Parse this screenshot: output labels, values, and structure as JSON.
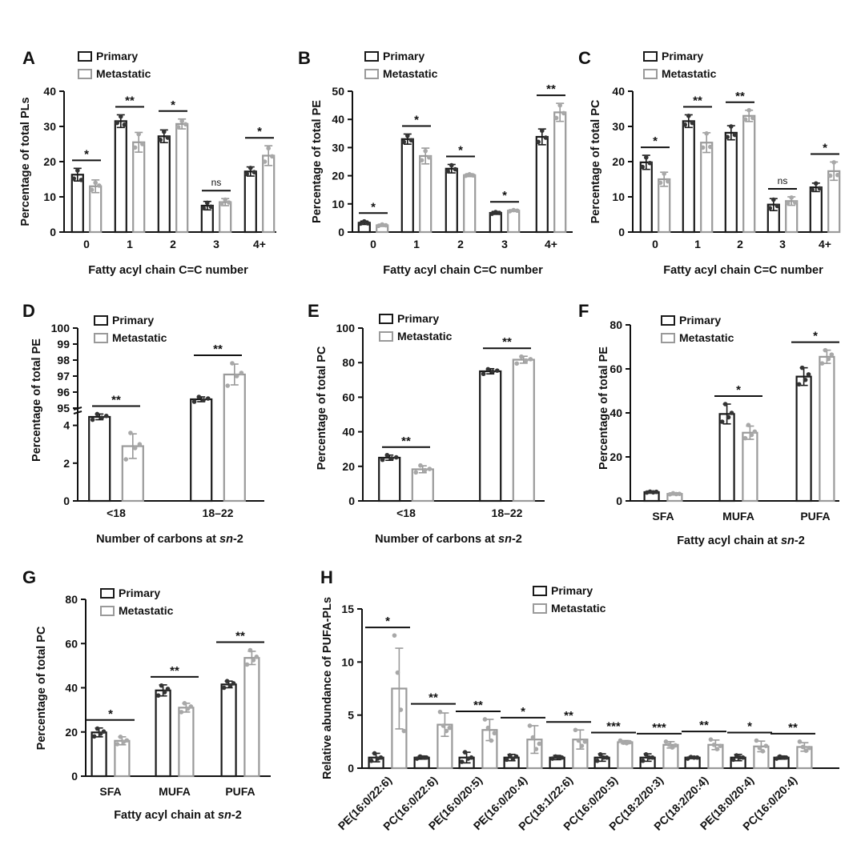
{
  "colors": {
    "primary": "#1a1a1a",
    "metastatic": "#9a9a9a",
    "dot_primary": "#333333",
    "dot_metastatic": "#a8a8a8"
  },
  "legend": {
    "primary": "Primary",
    "metastatic": "Metastatic"
  },
  "chart_data": [
    {
      "type": "bar",
      "letter": "A",
      "ylabel": "Percentage of total PLs",
      "xlabel_parts": [
        {
          "t": "Fatty acyl chain C=C number",
          "i": false
        }
      ],
      "yticks": [
        0,
        10,
        20,
        30,
        40
      ],
      "ylim": [
        0,
        40
      ],
      "categories": [
        "0",
        "1",
        "2",
        "3",
        "4+"
      ],
      "series": [
        {
          "name": "Primary",
          "values": [
            16.3,
            31.5,
            27.2,
            7.5,
            17.2
          ],
          "errors": [
            1.8,
            1.8,
            1.8,
            1.2,
            1.3
          ],
          "points": [
            [
              15.2,
              17.5,
              14.8
            ],
            [
              31.0,
              32.8,
              30.5
            ],
            [
              26.2,
              28.5,
              26.8
            ],
            [
              6.8,
              8.3,
              7.2
            ],
            [
              16.5,
              18.2,
              17.0
            ]
          ]
        },
        {
          "name": "Metastatic",
          "values": [
            13.0,
            25.5,
            30.7,
            8.5,
            21.7
          ],
          "errors": [
            1.8,
            2.8,
            1.4,
            1.0,
            2.8
          ],
          "points": [
            [
              12.0,
              14.0,
              13.2
            ],
            [
              24.0,
              27.8,
              25.0
            ],
            [
              29.8,
              31.5,
              30.6
            ],
            [
              8.0,
              9.2,
              8.4
            ],
            [
              20.0,
              23.8,
              21.5
            ]
          ]
        }
      ],
      "sig": [
        "*",
        "**",
        "*",
        "ns",
        "*"
      ]
    },
    {
      "type": "bar",
      "letter": "B",
      "ylabel": "Percentage of total PE",
      "xlabel_parts": [
        {
          "t": "Fatty acyl chain C=C number",
          "i": false
        }
      ],
      "yticks": [
        0,
        10,
        20,
        30,
        40,
        50
      ],
      "ylim": [
        0,
        50
      ],
      "categories": [
        "0",
        "1",
        "2",
        "3",
        "4+"
      ],
      "series": [
        {
          "name": "Primary",
          "values": [
            3.3,
            33.0,
            22.5,
            6.8,
            33.8
          ],
          "errors": [
            0.6,
            1.8,
            1.5,
            0.5,
            2.8
          ],
          "points": [
            [
              3.0,
              3.8,
              3.1
            ],
            [
              32.0,
              34.2,
              32.6
            ],
            [
              21.6,
              23.7,
              22.3
            ],
            [
              6.5,
              7.1,
              6.8
            ],
            [
              32.0,
              36.0,
              33.5
            ]
          ]
        },
        {
          "name": "Metastatic",
          "values": [
            2.4,
            27.0,
            20.2,
            7.6,
            42.5
          ],
          "errors": [
            0.4,
            2.8,
            0.5,
            0.3,
            3.2
          ],
          "points": [
            [
              2.2,
              2.7,
              2.4
            ],
            [
              25.5,
              28.8,
              26.5
            ],
            [
              20.0,
              20.5,
              20.1
            ],
            [
              7.4,
              7.8,
              7.6
            ],
            [
              40.5,
              45.0,
              42.2
            ]
          ]
        }
      ],
      "sig": [
        "*",
        "*",
        "*",
        "*",
        "**"
      ]
    },
    {
      "type": "bar",
      "letter": "C",
      "ylabel": "Percentage of total PC",
      "xlabel_parts": [
        {
          "t": "Fatty acyl chain C=C number",
          "i": false
        }
      ],
      "yticks": [
        0,
        10,
        20,
        30,
        40
      ],
      "ylim": [
        0,
        40
      ],
      "categories": [
        "0",
        "1",
        "2",
        "3",
        "4+"
      ],
      "series": [
        {
          "name": "Primary",
          "values": [
            19.8,
            31.5,
            28.2,
            7.8,
            12.7
          ],
          "errors": [
            2.0,
            1.8,
            2.0,
            1.7,
            1.2
          ],
          "points": [
            [
              18.5,
              21.2,
              19.6
            ],
            [
              30.5,
              33.0,
              31.0
            ],
            [
              27.0,
              30.0,
              27.6
            ],
            [
              6.8,
              9.2,
              7.4
            ],
            [
              12.0,
              13.8,
              12.4
            ]
          ]
        },
        {
          "name": "Metastatic",
          "values": [
            15.0,
            25.4,
            33.0,
            8.8,
            17.3
          ],
          "errors": [
            2.0,
            2.8,
            1.6,
            1.2,
            2.6
          ],
          "points": [
            [
              14.0,
              16.6,
              14.4
            ],
            [
              24.0,
              28.0,
              24.2
            ],
            [
              32.0,
              34.6,
              32.4
            ],
            [
              8.2,
              9.8,
              8.4
            ],
            [
              16.0,
              19.8,
              16.2
            ]
          ]
        }
      ],
      "sig": [
        "*",
        "**",
        "**",
        "ns",
        "*"
      ]
    },
    {
      "type": "bar",
      "letter": "D",
      "ylabel": "Percentage of total PE",
      "xlabel_parts": [
        {
          "t": "Number of carbons at ",
          "i": false
        },
        {
          "t": "sn",
          "i": true
        },
        {
          "t": "-2",
          "i": false
        }
      ],
      "yticks": [
        0,
        2,
        4,
        95,
        96,
        97,
        98,
        99,
        100
      ],
      "ylim": [
        0,
        100
      ],
      "axis_break": [
        5,
        95
      ],
      "categories": [
        "<18",
        "18–22"
      ],
      "series": [
        {
          "name": "Primary",
          "values": [
            4.45,
            95.55
          ],
          "errors": [
            0.15,
            0.15
          ],
          "points": [
            [
              4.3,
              4.6,
              4.4,
              4.5
            ],
            [
              95.4,
              95.7,
              95.5,
              95.6
            ]
          ]
        },
        {
          "name": "Metastatic",
          "values": [
            2.9,
            97.1
          ],
          "errors": [
            0.65,
            0.65
          ],
          "points": [
            [
              2.2,
              3.6,
              2.8,
              3.0
            ],
            [
              96.4,
              97.8,
              97.0,
              97.2
            ]
          ]
        }
      ],
      "sig": [
        "**",
        "**"
      ]
    },
    {
      "type": "bar",
      "letter": "E",
      "ylabel": "Percentage of total PC",
      "xlabel_parts": [
        {
          "t": "Number of carbons at ",
          "i": false
        },
        {
          "t": "sn",
          "i": true
        },
        {
          "t": "-2",
          "i": false
        }
      ],
      "yticks": [
        0,
        20,
        40,
        60,
        80,
        100
      ],
      "ylim": [
        0,
        100
      ],
      "categories": [
        "<18",
        "18–22"
      ],
      "series": [
        {
          "name": "Primary",
          "values": [
            25.0,
            75.0
          ],
          "errors": [
            1.5,
            1.5
          ],
          "points": [
            [
              23.8,
              26.5,
              24.6,
              25.2
            ],
            [
              73.5,
              76.2,
              74.8,
              75.4
            ]
          ]
        },
        {
          "name": "Metastatic",
          "values": [
            18.3,
            81.7
          ],
          "errors": [
            2.0,
            2.0
          ],
          "points": [
            [
              16.5,
              20.5,
              17.8,
              18.5
            ],
            [
              79.5,
              83.5,
              81.2,
              82.0
            ]
          ]
        }
      ],
      "sig": [
        "**",
        "**"
      ]
    },
    {
      "type": "bar",
      "letter": "F",
      "ylabel": "Percentage of total PE",
      "xlabel_parts": [
        {
          "t": "Fatty acyl chain at ",
          "i": false
        },
        {
          "t": "sn",
          "i": true
        },
        {
          "t": "-2",
          "i": false
        }
      ],
      "yticks": [
        0,
        20,
        40,
        60,
        80
      ],
      "ylim": [
        0,
        80
      ],
      "categories": [
        "SFA",
        "MUFA",
        "PUFA"
      ],
      "series": [
        {
          "name": "Primary",
          "values": [
            4.0,
            39.5,
            56.5
          ],
          "errors": [
            0.5,
            4.5,
            4.0
          ],
          "points": [
            [
              3.8,
              4.2,
              3.9,
              4.1
            ],
            [
              36.0,
              44.0,
              38.0,
              40.0
            ],
            [
              53.0,
              60.5,
              55.0,
              57.5
            ]
          ]
        },
        {
          "name": "Metastatic",
          "values": [
            3.2,
            31.0,
            65.5
          ],
          "errors": [
            0.5,
            3.0,
            3.0
          ],
          "points": [
            [
              3.0,
              3.5,
              3.1,
              3.2
            ],
            [
              28.5,
              34.5,
              30.0,
              31.5
            ],
            [
              62.5,
              68.5,
              64.5,
              66.5
            ]
          ]
        }
      ],
      "sig": [
        "",
        "*",
        "*"
      ]
    },
    {
      "type": "bar",
      "letter": "G",
      "ylabel": "Percentage of total PC",
      "xlabel_parts": [
        {
          "t": "Fatty acyl chain at ",
          "i": false
        },
        {
          "t": "sn",
          "i": true
        },
        {
          "t": "-2",
          "i": false
        }
      ],
      "yticks": [
        0,
        20,
        40,
        60,
        80
      ],
      "ylim": [
        0,
        80
      ],
      "categories": [
        "SFA",
        "MUFA",
        "PUFA"
      ],
      "series": [
        {
          "name": "Primary",
          "values": [
            19.8,
            38.8,
            41.5
          ],
          "errors": [
            2.0,
            2.5,
            1.5
          ],
          "points": [
            [
              18.0,
              21.5,
              19.2,
              20.2
            ],
            [
              36.5,
              41.0,
              38.0,
              39.5
            ],
            [
              40.0,
              43.0,
              41.0,
              42.0
            ]
          ]
        },
        {
          "name": "Metastatic",
          "values": [
            16.0,
            31.0,
            53.5
          ],
          "errors": [
            1.8,
            2.0,
            3.0
          ],
          "points": [
            [
              14.5,
              17.8,
              15.5,
              16.2
            ],
            [
              29.0,
              33.0,
              30.5,
              31.5
            ],
            [
              50.5,
              57.0,
              52.5,
              54.0
            ]
          ]
        }
      ],
      "sig": [
        "*",
        "**",
        "**"
      ]
    },
    {
      "type": "bar",
      "letter": "H",
      "ylabel": "Relative abundance of PUFA-PLs",
      "xlabel_parts": [],
      "yticks": [
        0,
        5,
        10,
        15
      ],
      "ylim": [
        0,
        15
      ],
      "categories": [
        "PE(16:0/22:6)",
        "PC(16:0/22:6)",
        "PE(16:0/20:5)",
        "PE(16:0/20:4)",
        "PC(18:1/22:6)",
        "PC(16:0/20:5)",
        "PC(18:2/20:3)",
        "PC(18:2/20:4)",
        "PE(18:0/20:4)",
        "PC(16:0/20:4)"
      ],
      "series": [
        {
          "name": "Primary",
          "values": [
            1.0,
            1.0,
            1.0,
            1.0,
            1.0,
            1.0,
            1.0,
            1.0,
            1.0,
            1.0
          ],
          "errors": [
            0.4,
            0.15,
            0.5,
            0.3,
            0.2,
            0.35,
            0.35,
            0.1,
            0.3,
            0.15
          ],
          "points": [
            [
              0.7,
              1.4,
              0.9,
              1.0
            ],
            [
              0.9,
              1.1,
              1.0,
              1.0
            ],
            [
              0.6,
              1.5,
              0.9,
              1.0
            ],
            [
              0.8,
              1.2,
              0.9,
              1.1
            ],
            [
              0.9,
              1.1,
              1.0,
              1.0
            ],
            [
              0.7,
              1.3,
              1.0,
              1.0
            ],
            [
              0.7,
              1.3,
              1.0,
              1.0
            ],
            [
              0.9,
              1.05,
              1.0,
              1.0
            ],
            [
              0.8,
              1.2,
              1.0,
              1.0
            ],
            [
              0.9,
              1.1,
              1.0,
              1.0
            ]
          ]
        },
        {
          "name": "Metastatic",
          "values": [
            7.5,
            4.1,
            3.6,
            2.7,
            2.7,
            2.45,
            2.2,
            2.2,
            2.05,
            2.0
          ],
          "errors": [
            3.8,
            1.1,
            1.0,
            1.3,
            0.9,
            0.15,
            0.3,
            0.45,
            0.5,
            0.4
          ],
          "points": [
            [
              12.5,
              9.0,
              5.5,
              3.5
            ],
            [
              5.3,
              4.0,
              3.5,
              3.8
            ],
            [
              4.6,
              3.8,
              2.6,
              3.3
            ],
            [
              4.0,
              2.9,
              1.8,
              2.3
            ],
            [
              3.6,
              2.6,
              2.1,
              2.5
            ],
            [
              2.6,
              2.4,
              2.35,
              2.45
            ],
            [
              2.5,
              2.2,
              1.95,
              2.15
            ],
            [
              2.7,
              2.2,
              1.8,
              2.1
            ],
            [
              2.6,
              1.9,
              1.6,
              2.1
            ],
            [
              2.5,
              2.0,
              1.65,
              1.9
            ]
          ]
        }
      ],
      "sig": [
        "*",
        "**",
        "**",
        "*",
        "**",
        "***",
        "***",
        "**",
        "*",
        "**"
      ]
    }
  ]
}
